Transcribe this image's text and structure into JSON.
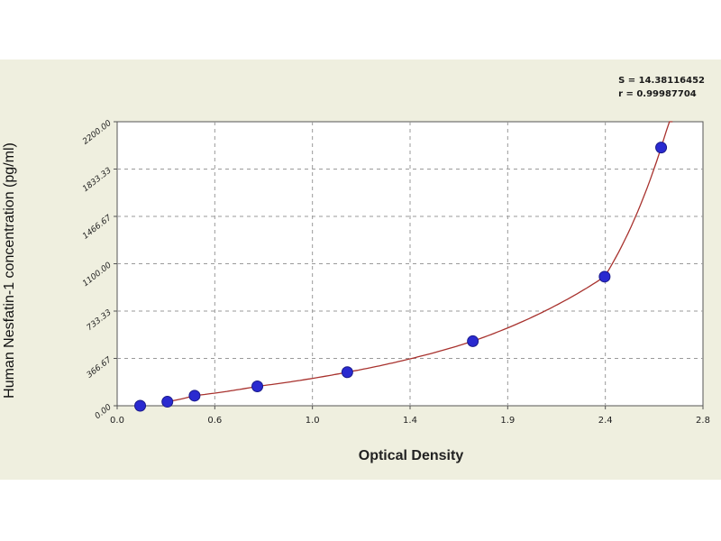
{
  "chart_data": {
    "type": "scatter",
    "xlabel": "Optical Density",
    "ylabel": "Human Nesfatin-1 concentration (pg/ml)",
    "xlim": [
      0.0,
      2.8
    ],
    "ylim": [
      0,
      2200
    ],
    "x_ticks": [
      "0.0",
      "0.6",
      "1.0",
      "1.4",
      "1.9",
      "2.4",
      "2.8"
    ],
    "y_ticks": [
      "0.00",
      "366.67",
      "733.33",
      "1100.00",
      "1466.67",
      "1833.33",
      "2200.00"
    ],
    "grid": true,
    "stats": {
      "s_label": "S = 14.38116452",
      "r_label": "r = 0.99987704"
    },
    "series": [
      {
        "marker_color": "#2a2ad0",
        "line_color": "#a8322e",
        "points": [
          {
            "x": 0.11,
            "y": 0
          },
          {
            "x": 0.24,
            "y": 31
          },
          {
            "x": 0.37,
            "y": 78
          },
          {
            "x": 0.67,
            "y": 150
          },
          {
            "x": 1.1,
            "y": 260
          },
          {
            "x": 1.7,
            "y": 500
          },
          {
            "x": 2.33,
            "y": 1000
          },
          {
            "x": 2.6,
            "y": 2000
          }
        ]
      }
    ]
  }
}
